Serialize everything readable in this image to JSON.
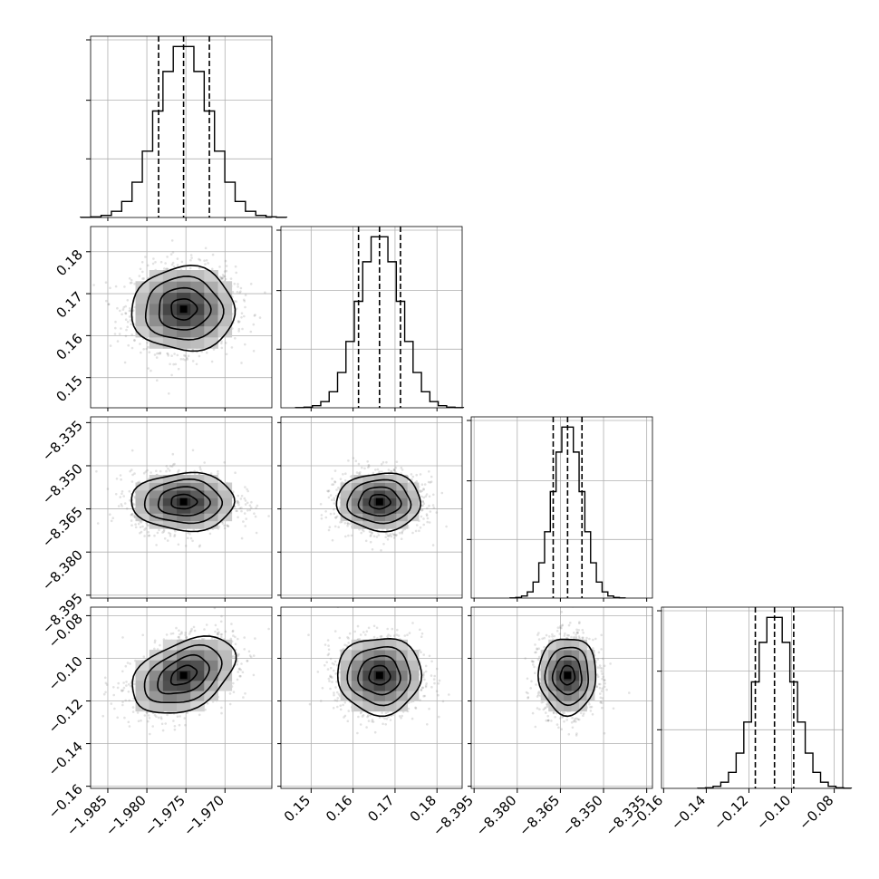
{
  "chart_data": {
    "type": "corner",
    "grid": true,
    "params": [
      {
        "mean": -1.9753,
        "std": 0.0033,
        "range": [
          -1.9872,
          -1.964
        ],
        "ticks": [
          -1.985,
          -1.98,
          -1.975,
          -1.97
        ],
        "tick_labels": [
          "−1.985",
          "−1.980",
          "−1.975",
          "−1.970"
        ],
        "quantiles": [
          -1.9785,
          -1.9753,
          -1.972
        ]
      },
      {
        "mean": 0.1663,
        "std": 0.005,
        "range": [
          0.1428,
          0.186
        ],
        "ticks": [
          0.15,
          0.16,
          0.17,
          0.18
        ],
        "tick_labels": [
          "0.15",
          "0.16",
          "0.17",
          "0.18"
        ],
        "quantiles": [
          0.1613,
          0.1663,
          0.1713
        ]
      },
      {
        "mean": -8.3625,
        "std": 0.005,
        "range": [
          -8.396,
          -8.333
        ],
        "ticks": [
          -8.395,
          -8.38,
          -8.365,
          -8.35,
          -8.335
        ],
        "tick_labels": [
          "−8.395",
          "−8.380",
          "−8.365",
          "−8.350",
          "−8.335"
        ],
        "quantiles": [
          -8.3675,
          -8.3625,
          -8.3575
        ]
      },
      {
        "mean": -0.108,
        "std": 0.009,
        "range": [
          -0.161,
          -0.076
        ],
        "ticks": [
          -0.16,
          -0.14,
          -0.12,
          -0.1,
          -0.08
        ],
        "tick_labels": [
          "−0.16",
          "−0.14",
          "−0.12",
          "−0.10",
          "−0.08"
        ],
        "quantiles": [
          -0.117,
          -0.108,
          -0.099
        ]
      }
    ],
    "correlations": [
      {
        "pair": [
          0,
          1
        ],
        "rho": 0.0
      },
      {
        "pair": [
          0,
          2
        ],
        "rho": 0.0
      },
      {
        "pair": [
          1,
          2
        ],
        "rho": 0.0
      },
      {
        "pair": [
          0,
          3
        ],
        "rho": 0.4
      },
      {
        "pair": [
          1,
          3
        ],
        "rho": 0.0
      },
      {
        "pair": [
          2,
          3
        ],
        "rho": 0.0
      }
    ],
    "contour_levels_sigma": [
      0.5,
      1.0,
      1.5,
      2.0
    ],
    "samples_per_panel": 1500,
    "histogram_bins": 20,
    "colors": {
      "line": "#000000",
      "points": "#7a7a7a",
      "grid": "#b0b0b0"
    }
  }
}
